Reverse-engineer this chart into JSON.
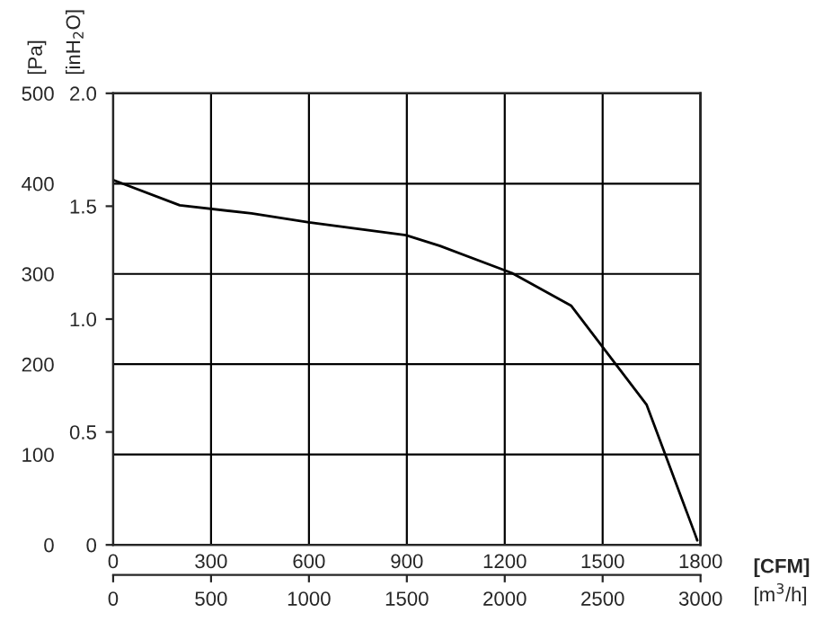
{
  "chart_data": {
    "type": "line",
    "xlabel": "[CFM]",
    "x2label": "[m$^{3}$/h]",
    "ylabel": "[Pa]",
    "y2label": "[inH$_{2}$O]",
    "xlim": [
      0,
      1800
    ],
    "xticks": [
      0,
      300,
      600,
      900,
      1200,
      1500,
      1800
    ],
    "x2lim": [
      0,
      3000
    ],
    "x2ticks": [
      0,
      500,
      1000,
      1500,
      2000,
      2500,
      3000
    ],
    "ylim": [
      0,
      500
    ],
    "yticks": [
      0,
      100,
      200,
      300,
      400,
      500
    ],
    "y2lim": [
      0,
      2.0
    ],
    "y2ticks": [
      {
        "value": 0,
        "label": "0"
      },
      {
        "value": 0.5,
        "label": "0.5"
      },
      {
        "value": 1.0,
        "label": "1.0"
      },
      {
        "value": 1.5,
        "label": "1.5"
      },
      {
        "value": 2.0,
        "label": "2.0"
      }
    ],
    "grid": true,
    "series": [
      {
        "color": "#000000",
        "x": [
          0,
          204,
          424,
          600,
          897,
          1002,
          1222,
          1403,
          1635,
          1783,
          1790
        ],
        "values": [
          404,
          376,
          367,
          357,
          343,
          331,
          301,
          265,
          155,
          12,
          5
        ]
      }
    ]
  }
}
